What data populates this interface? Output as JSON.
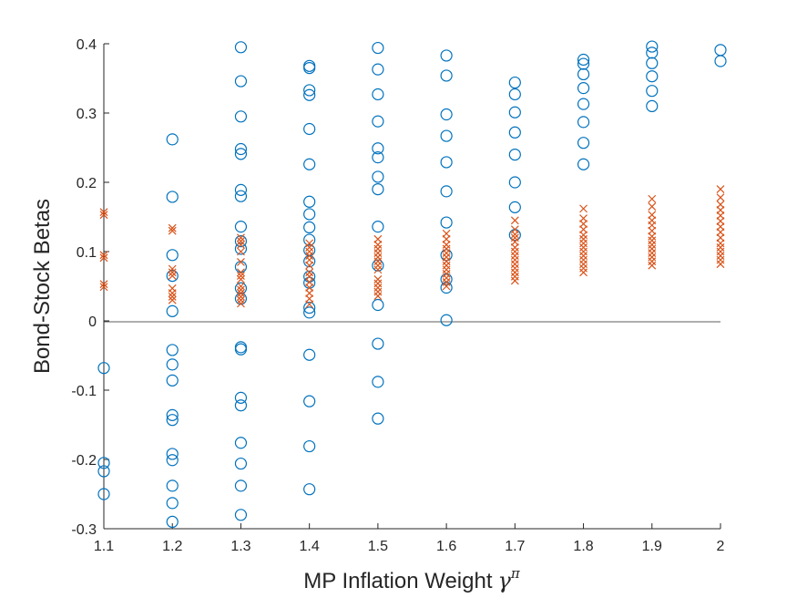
{
  "chart_data": {
    "type": "scatter",
    "title": "",
    "xlabel": "MP Inflation Weight",
    "xlabel_symbol": "γ",
    "xlabel_superscript": "π",
    "ylabel": "Bond-Stock Betas",
    "xlim": [
      1.1,
      2.0
    ],
    "ylim": [
      -0.3,
      0.4
    ],
    "x_ticks": [
      "1.1",
      "1.2",
      "1.3",
      "1.4",
      "1.5",
      "1.6",
      "1.7",
      "1.8",
      "1.9",
      "2"
    ],
    "y_ticks": [
      "-0.3",
      "-0.2",
      "-0.1",
      "0",
      "0.1",
      "0.2",
      "0.3",
      "0.4"
    ],
    "zero_line": true,
    "grid": false,
    "colors": {
      "circle": "#0072BD",
      "cross": "#D95319",
      "axis": "#262626"
    },
    "series": [
      {
        "marker": "circle",
        "points": [
          [
            1.1,
            -0.068
          ],
          [
            1.1,
            -0.205
          ],
          [
            1.1,
            -0.217
          ],
          [
            1.1,
            -0.25
          ],
          [
            1.2,
            0.262
          ],
          [
            1.2,
            0.179
          ],
          [
            1.2,
            0.095
          ],
          [
            1.2,
            0.065
          ],
          [
            1.2,
            0.014
          ],
          [
            1.2,
            -0.042
          ],
          [
            1.2,
            -0.063
          ],
          [
            1.2,
            -0.086
          ],
          [
            1.2,
            -0.136
          ],
          [
            1.2,
            -0.143
          ],
          [
            1.2,
            -0.192
          ],
          [
            1.2,
            -0.201
          ],
          [
            1.2,
            -0.238
          ],
          [
            1.2,
            -0.263
          ],
          [
            1.2,
            -0.29
          ],
          [
            1.3,
            0.395
          ],
          [
            1.3,
            0.346
          ],
          [
            1.3,
            0.295
          ],
          [
            1.3,
            0.248
          ],
          [
            1.3,
            0.241
          ],
          [
            1.3,
            0.189
          ],
          [
            1.3,
            0.18
          ],
          [
            1.3,
            0.136
          ],
          [
            1.3,
            0.115
          ],
          [
            1.3,
            0.104
          ],
          [
            1.3,
            0.078
          ],
          [
            1.3,
            0.047
          ],
          [
            1.3,
            0.032
          ],
          [
            1.3,
            -0.038
          ],
          [
            1.3,
            -0.041
          ],
          [
            1.3,
            -0.111
          ],
          [
            1.3,
            -0.122
          ],
          [
            1.3,
            -0.176
          ],
          [
            1.3,
            -0.206
          ],
          [
            1.3,
            -0.238
          ],
          [
            1.3,
            -0.28
          ],
          [
            1.4,
            0.368
          ],
          [
            1.4,
            0.365
          ],
          [
            1.4,
            0.333
          ],
          [
            1.4,
            0.326
          ],
          [
            1.4,
            0.277
          ],
          [
            1.4,
            0.226
          ],
          [
            1.4,
            0.172
          ],
          [
            1.4,
            0.154
          ],
          [
            1.4,
            0.135
          ],
          [
            1.4,
            0.117
          ],
          [
            1.4,
            0.102
          ],
          [
            1.4,
            0.086
          ],
          [
            1.4,
            0.064
          ],
          [
            1.4,
            0.055
          ],
          [
            1.4,
            0.019
          ],
          [
            1.4,
            0.012
          ],
          [
            1.4,
            -0.049
          ],
          [
            1.4,
            -0.116
          ],
          [
            1.4,
            -0.181
          ],
          [
            1.4,
            -0.243
          ],
          [
            1.5,
            0.394
          ],
          [
            1.5,
            0.363
          ],
          [
            1.5,
            0.327
          ],
          [
            1.5,
            0.288
          ],
          [
            1.5,
            0.249
          ],
          [
            1.5,
            0.236
          ],
          [
            1.5,
            0.208
          ],
          [
            1.5,
            0.19
          ],
          [
            1.5,
            0.136
          ],
          [
            1.5,
            0.08
          ],
          [
            1.5,
            0.023
          ],
          [
            1.5,
            -0.033
          ],
          [
            1.5,
            -0.088
          ],
          [
            1.5,
            -0.141
          ],
          [
            1.6,
            0.383
          ],
          [
            1.6,
            0.354
          ],
          [
            1.6,
            0.298
          ],
          [
            1.6,
            0.267
          ],
          [
            1.6,
            0.229
          ],
          [
            1.6,
            0.187
          ],
          [
            1.6,
            0.142
          ],
          [
            1.6,
            0.095
          ],
          [
            1.6,
            0.06
          ],
          [
            1.6,
            0.048
          ],
          [
            1.6,
            0.001
          ],
          [
            1.7,
            0.344
          ],
          [
            1.7,
            0.327
          ],
          [
            1.7,
            0.301
          ],
          [
            1.7,
            0.272
          ],
          [
            1.7,
            0.24
          ],
          [
            1.7,
            0.2
          ],
          [
            1.7,
            0.164
          ],
          [
            1.7,
            0.124
          ],
          [
            1.8,
            0.377
          ],
          [
            1.8,
            0.371
          ],
          [
            1.8,
            0.356
          ],
          [
            1.8,
            0.336
          ],
          [
            1.8,
            0.313
          ],
          [
            1.8,
            0.287
          ],
          [
            1.8,
            0.257
          ],
          [
            1.8,
            0.226
          ],
          [
            1.9,
            0.396
          ],
          [
            1.9,
            0.387
          ],
          [
            1.9,
            0.372
          ],
          [
            1.9,
            0.353
          ],
          [
            1.9,
            0.332
          ],
          [
            1.9,
            0.31
          ],
          [
            2.0,
            0.391
          ],
          [
            2.0,
            0.375
          ]
        ]
      },
      {
        "marker": "cross",
        "points": [
          [
            1.1,
            0.157
          ],
          [
            1.1,
            0.153
          ],
          [
            1.1,
            0.095
          ],
          [
            1.1,
            0.091
          ],
          [
            1.1,
            0.053
          ],
          [
            1.1,
            0.049
          ],
          [
            1.2,
            0.134
          ],
          [
            1.2,
            0.13
          ],
          [
            1.2,
            0.075
          ],
          [
            1.2,
            0.07
          ],
          [
            1.2,
            0.065
          ],
          [
            1.2,
            0.047
          ],
          [
            1.2,
            0.04
          ],
          [
            1.2,
            0.035
          ],
          [
            1.2,
            0.03
          ],
          [
            1.3,
            0.12
          ],
          [
            1.3,
            0.115
          ],
          [
            1.3,
            0.11
          ],
          [
            1.3,
            0.1
          ],
          [
            1.3,
            0.085
          ],
          [
            1.3,
            0.07
          ],
          [
            1.3,
            0.065
          ],
          [
            1.3,
            0.06
          ],
          [
            1.3,
            0.05
          ],
          [
            1.3,
            0.045
          ],
          [
            1.3,
            0.04
          ],
          [
            1.3,
            0.035
          ],
          [
            1.3,
            0.03
          ],
          [
            1.3,
            0.025
          ],
          [
            1.4,
            0.112
          ],
          [
            1.4,
            0.106
          ],
          [
            1.4,
            0.1
          ],
          [
            1.4,
            0.094
          ],
          [
            1.4,
            0.088
          ],
          [
            1.4,
            0.08
          ],
          [
            1.4,
            0.07
          ],
          [
            1.4,
            0.064
          ],
          [
            1.4,
            0.056
          ],
          [
            1.4,
            0.048
          ],
          [
            1.4,
            0.04
          ],
          [
            1.4,
            0.032
          ],
          [
            1.4,
            0.024
          ],
          [
            1.5,
            0.118
          ],
          [
            1.5,
            0.11
          ],
          [
            1.5,
            0.104
          ],
          [
            1.5,
            0.098
          ],
          [
            1.5,
            0.092
          ],
          [
            1.5,
            0.086
          ],
          [
            1.5,
            0.08
          ],
          [
            1.5,
            0.074
          ],
          [
            1.5,
            0.06
          ],
          [
            1.5,
            0.054
          ],
          [
            1.5,
            0.048
          ],
          [
            1.5,
            0.042
          ],
          [
            1.5,
            0.036
          ],
          [
            1.6,
            0.126
          ],
          [
            1.6,
            0.118
          ],
          [
            1.6,
            0.11
          ],
          [
            1.6,
            0.104
          ],
          [
            1.6,
            0.098
          ],
          [
            1.6,
            0.092
          ],
          [
            1.6,
            0.086
          ],
          [
            1.6,
            0.08
          ],
          [
            1.6,
            0.074
          ],
          [
            1.6,
            0.068
          ],
          [
            1.6,
            0.062
          ],
          [
            1.6,
            0.056
          ],
          [
            1.6,
            0.05
          ],
          [
            1.7,
            0.145
          ],
          [
            1.7,
            0.132
          ],
          [
            1.7,
            0.125
          ],
          [
            1.7,
            0.12
          ],
          [
            1.7,
            0.114
          ],
          [
            1.7,
            0.106
          ],
          [
            1.7,
            0.1
          ],
          [
            1.7,
            0.094
          ],
          [
            1.7,
            0.088
          ],
          [
            1.7,
            0.082
          ],
          [
            1.7,
            0.076
          ],
          [
            1.7,
            0.07
          ],
          [
            1.7,
            0.064
          ],
          [
            1.7,
            0.058
          ],
          [
            1.8,
            0.162
          ],
          [
            1.8,
            0.148
          ],
          [
            1.8,
            0.14
          ],
          [
            1.8,
            0.132
          ],
          [
            1.8,
            0.124
          ],
          [
            1.8,
            0.118
          ],
          [
            1.8,
            0.112
          ],
          [
            1.8,
            0.106
          ],
          [
            1.8,
            0.1
          ],
          [
            1.8,
            0.094
          ],
          [
            1.8,
            0.088
          ],
          [
            1.8,
            0.082
          ],
          [
            1.8,
            0.076
          ],
          [
            1.8,
            0.07
          ],
          [
            1.9,
            0.176
          ],
          [
            1.9,
            0.165
          ],
          [
            1.9,
            0.153
          ],
          [
            1.9,
            0.145
          ],
          [
            1.9,
            0.138
          ],
          [
            1.9,
            0.13
          ],
          [
            1.9,
            0.122
          ],
          [
            1.9,
            0.116
          ],
          [
            1.9,
            0.11
          ],
          [
            1.9,
            0.104
          ],
          [
            1.9,
            0.098
          ],
          [
            1.9,
            0.092
          ],
          [
            1.9,
            0.086
          ],
          [
            1.9,
            0.08
          ],
          [
            2.0,
            0.19
          ],
          [
            2.0,
            0.178
          ],
          [
            2.0,
            0.168
          ],
          [
            2.0,
            0.16
          ],
          [
            2.0,
            0.152
          ],
          [
            2.0,
            0.144
          ],
          [
            2.0,
            0.136
          ],
          [
            2.0,
            0.128
          ],
          [
            2.0,
            0.12
          ],
          [
            2.0,
            0.112
          ],
          [
            2.0,
            0.106
          ],
          [
            2.0,
            0.1
          ],
          [
            2.0,
            0.094
          ],
          [
            2.0,
            0.088
          ],
          [
            2.0,
            0.082
          ]
        ]
      }
    ]
  }
}
